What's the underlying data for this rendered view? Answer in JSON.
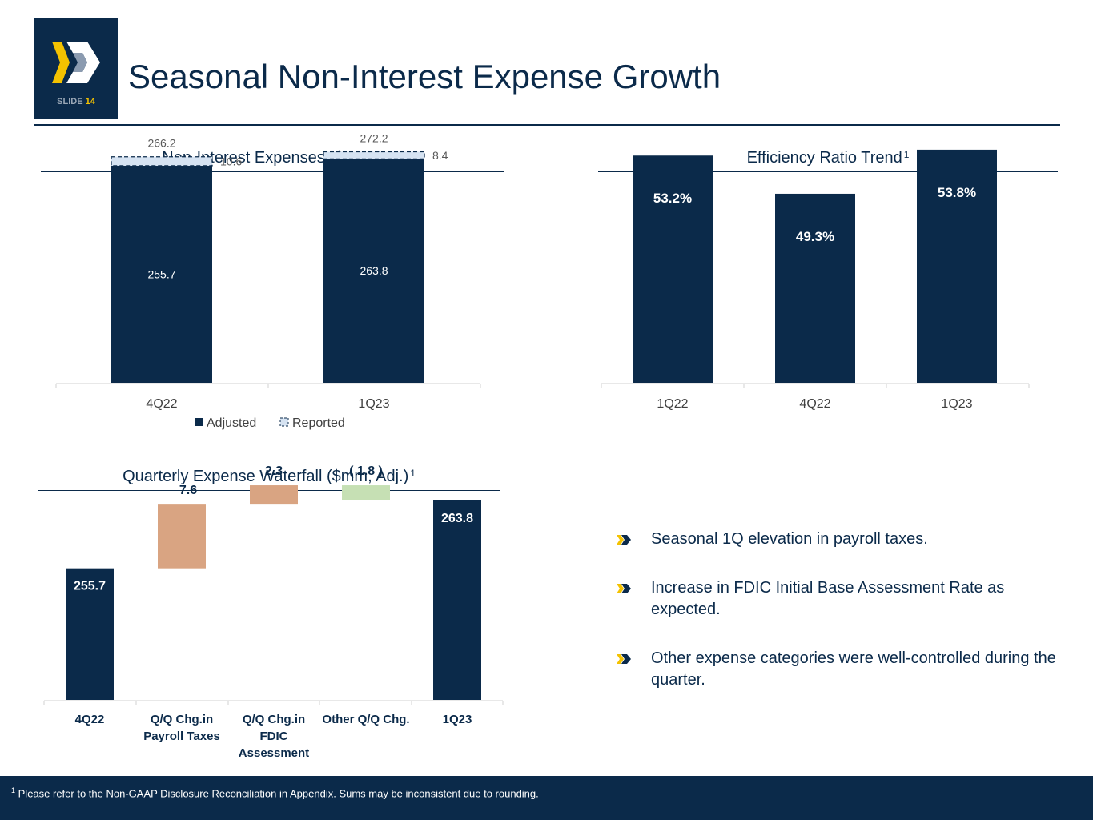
{
  "header": {
    "title": "Seasonal Non-Interest Expense Growth",
    "slide_label": "SLIDE",
    "slide_number": "14"
  },
  "colors": {
    "navy": "#0b2a4a",
    "reported_fill": "#d6e3f2",
    "payroll": "#d9a482",
    "fdic": "#d9a482",
    "other": "#c6e0b4",
    "brand_yellow": "#f4c200"
  },
  "sections": {
    "expenses_title": "Non-Interest Expenses ($mm)",
    "efficiency_title": "Efficiency Ratio Trend",
    "waterfall_title": "Quarterly Expense Waterfall ($mm, Adj.)",
    "footnote_mark": "1"
  },
  "chart_data": [
    {
      "type": "bar",
      "title": "Non-Interest Expenses ($mm)",
      "categories": [
        "4Q22",
        "1Q23"
      ],
      "series": [
        {
          "name": "Adjusted",
          "values": [
            255.7,
            263.8
          ]
        },
        {
          "name": "Reported",
          "values": [
            10.6,
            8.4
          ]
        }
      ],
      "totals": [
        266.2,
        272.2
      ],
      "value_labels": {
        "adjusted": [
          "255.7",
          "263.8"
        ],
        "reported": [
          "10.6",
          "8.4"
        ],
        "totals": [
          "266.2",
          "272.2"
        ]
      },
      "legend": [
        "Adjusted",
        "Reported"
      ],
      "ylim": [
        0,
        300
      ]
    },
    {
      "type": "bar",
      "title": "Efficiency Ratio Trend",
      "categories": [
        "1Q22",
        "4Q22",
        "1Q23"
      ],
      "values": [
        53.2,
        49.3,
        53.8
      ],
      "value_labels": [
        "53.2%",
        "49.3%",
        "53.8%"
      ],
      "ylim": [
        30,
        56
      ]
    },
    {
      "type": "bar",
      "title": "Quarterly Expense Waterfall ($mm, Adj.)",
      "categories": [
        "4Q22",
        "Q/Q Chg.in Payroll Taxes",
        "Q/Q Chg.in FDIC Assessment",
        "Other Q/Q Chg.",
        "1Q23"
      ],
      "category_lines": [
        [
          "4Q22"
        ],
        [
          "Q/Q Chg.in",
          "Payroll Taxes"
        ],
        [
          "Q/Q Chg.in",
          "FDIC",
          "Assessment"
        ],
        [
          "Other Q/Q Chg."
        ],
        [
          "1Q23"
        ]
      ],
      "values": [
        255.7,
        7.6,
        2.3,
        -1.8,
        263.8
      ],
      "value_labels": [
        "255.7",
        "7.6",
        "2.3",
        "( 1.8 )",
        "263.8"
      ],
      "kinds": [
        "total",
        "delta",
        "delta",
        "delta",
        "total"
      ],
      "ylim": [
        240,
        270
      ]
    }
  ],
  "bullets": [
    "Seasonal 1Q elevation in payroll taxes.",
    "Increase in FDIC Initial Base Assessment Rate as expected.",
    "Other expense categories were well-controlled during the quarter."
  ],
  "footer": {
    "footnote_mark": "1",
    "footnote": "Please refer to the Non-GAAP Disclosure Reconciliation in Appendix. Sums may be inconsistent due to rounding."
  }
}
